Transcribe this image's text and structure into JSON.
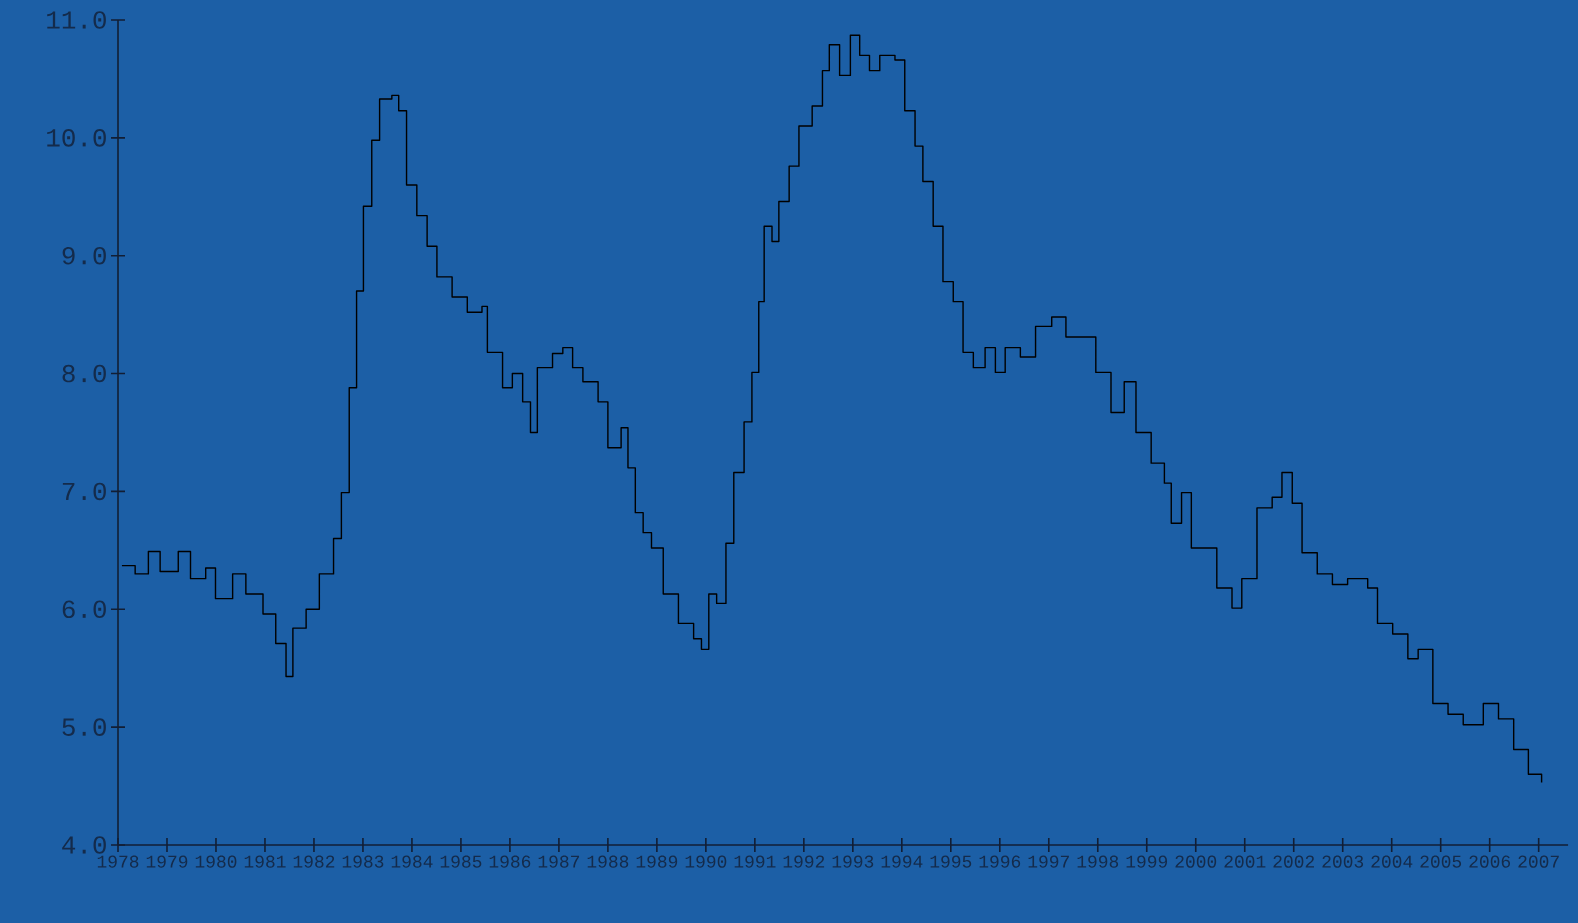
{
  "chart_data": {
    "type": "step",
    "color": "#000000",
    "grid": false,
    "x": [
      1978.08,
      1978.35,
      1978.62,
      1978.86,
      1979.23,
      1979.48,
      1979.79,
      1979.99,
      1980.34,
      1980.61,
      1980.96,
      1981.22,
      1981.43,
      1981.57,
      1981.84,
      1982.11,
      1982.4,
      1982.56,
      1982.72,
      1982.87,
      1983.01,
      1983.18,
      1983.34,
      1983.59,
      1983.73,
      1983.89,
      1984.1,
      1984.31,
      1984.51,
      1984.82,
      1985.13,
      1985.43,
      1985.54,
      1985.85,
      1986.05,
      1986.26,
      1986.42,
      1986.56,
      1986.87,
      1987.08,
      1987.28,
      1987.49,
      1987.8,
      1988.0,
      1988.27,
      1988.41,
      1988.56,
      1988.72,
      1988.89,
      1989.13,
      1989.44,
      1989.75,
      1989.91,
      1990.06,
      1990.22,
      1990.41,
      1990.57,
      1990.78,
      1990.94,
      1991.08,
      1991.19,
      1991.35,
      1991.49,
      1991.7,
      1991.9,
      1992.17,
      1992.38,
      1992.52,
      1992.73,
      1992.95,
      1993.14,
      1993.34,
      1993.55,
      1993.86,
      1994.06,
      1994.27,
      1994.43,
      1994.64,
      1994.84,
      1995.05,
      1995.25,
      1995.46,
      1995.7,
      1995.91,
      1996.11,
      1996.42,
      1996.73,
      1997.06,
      1997.35,
      1997.65,
      1997.96,
      1998.27,
      1998.54,
      1998.78,
      1999.09,
      1999.36,
      1999.5,
      1999.71,
      1999.91,
      2000.22,
      2000.43,
      2000.74,
      2000.94,
      2001.25,
      2001.56,
      2001.76,
      2001.97,
      2002.17,
      2002.48,
      2002.79,
      2003.1,
      2003.51,
      2003.71,
      2004.02,
      2004.33,
      2004.54,
      2004.84,
      2005.15,
      2005.46,
      2005.87,
      2006.18,
      2006.49,
      2006.79,
      2007.06
    ],
    "values": [
      6.37,
      6.3,
      6.49,
      6.32,
      6.49,
      6.26,
      6.35,
      6.09,
      6.3,
      6.13,
      5.96,
      5.71,
      5.43,
      5.84,
      6.0,
      6.3,
      6.6,
      6.99,
      7.88,
      8.7,
      9.42,
      9.98,
      10.33,
      10.36,
      10.23,
      9.6,
      9.34,
      9.08,
      8.82,
      8.65,
      8.52,
      8.57,
      8.18,
      7.88,
      8.0,
      7.76,
      7.5,
      8.05,
      8.17,
      8.22,
      8.05,
      7.93,
      7.76,
      7.37,
      7.54,
      7.2,
      6.82,
      6.65,
      6.52,
      6.13,
      5.88,
      5.75,
      5.66,
      6.13,
      6.05,
      6.56,
      7.16,
      7.59,
      8.01,
      8.61,
      9.25,
      9.12,
      9.46,
      9.76,
      10.1,
      10.27,
      10.57,
      10.79,
      10.53,
      10.87,
      10.7,
      10.57,
      10.7,
      10.66,
      10.23,
      9.93,
      9.63,
      9.25,
      8.78,
      8.61,
      8.18,
      8.05,
      8.22,
      8.01,
      8.22,
      8.14,
      8.4,
      8.48,
      8.31,
      8.31,
      8.01,
      7.67,
      7.93,
      7.5,
      7.24,
      7.07,
      6.73,
      6.99,
      6.52,
      6.52,
      6.18,
      6.01,
      6.26,
      6.86,
      6.95,
      7.16,
      6.9,
      6.48,
      6.3,
      6.21,
      6.26,
      6.18,
      5.88,
      5.79,
      5.58,
      5.66,
      5.2,
      5.11,
      5.02,
      5.2,
      5.07,
      4.81,
      4.6,
      4.53
    ],
    "xlim": [
      1978,
      2007.6
    ],
    "xticks": [
      {
        "value": 1978,
        "label": "1978"
      },
      {
        "value": 1979,
        "label": "1979"
      },
      {
        "value": 1980,
        "label": "1980"
      },
      {
        "value": 1981,
        "label": "1981"
      },
      {
        "value": 1982,
        "label": "1982"
      },
      {
        "value": 1983,
        "label": "1983"
      },
      {
        "value": 1984,
        "label": "1984"
      },
      {
        "value": 1985,
        "label": "1985"
      },
      {
        "value": 1986,
        "label": "1986"
      },
      {
        "value": 1987,
        "label": "1987"
      },
      {
        "value": 1988,
        "label": "1988"
      },
      {
        "value": 1989,
        "label": "1989"
      },
      {
        "value": 1990,
        "label": "1990"
      },
      {
        "value": 1991,
        "label": "1991"
      },
      {
        "value": 1992,
        "label": "1992"
      },
      {
        "value": 1993,
        "label": "1993"
      },
      {
        "value": 1994,
        "label": "1994"
      },
      {
        "value": 1995,
        "label": "1995"
      },
      {
        "value": 1996,
        "label": "1996"
      },
      {
        "value": 1997,
        "label": "1997"
      },
      {
        "value": 1998,
        "label": "1998"
      },
      {
        "value": 1999,
        "label": "1999"
      },
      {
        "value": 2000,
        "label": "2000"
      },
      {
        "value": 2001,
        "label": "2001"
      },
      {
        "value": 2002,
        "label": "2002"
      },
      {
        "value": 2003,
        "label": "2003"
      },
      {
        "value": 2004,
        "label": "2004"
      },
      {
        "value": 2005,
        "label": "2005"
      },
      {
        "value": 2006,
        "label": "2006"
      },
      {
        "value": 2007,
        "label": "2007"
      }
    ],
    "ylim": [
      4,
      11
    ],
    "yticks": [
      {
        "value": 4,
        "label": "4.0"
      },
      {
        "value": 5,
        "label": "5.0"
      },
      {
        "value": 6,
        "label": "6.0"
      },
      {
        "value": 7,
        "label": "7.0"
      },
      {
        "value": 8,
        "label": "8.0"
      },
      {
        "value": 9,
        "label": "9.0"
      },
      {
        "value": 10,
        "label": "10.0"
      },
      {
        "value": 11,
        "label": "11.0"
      }
    ]
  }
}
